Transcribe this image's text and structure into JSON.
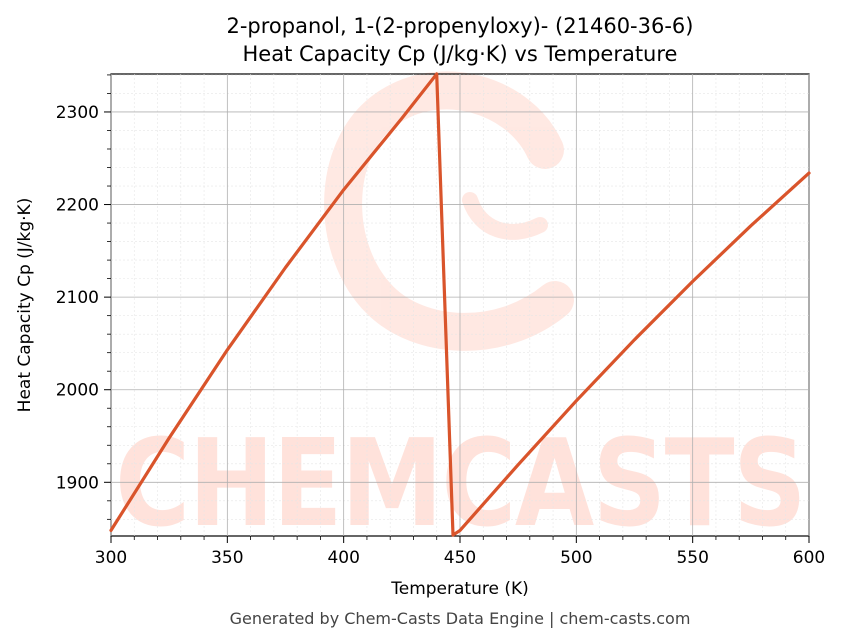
{
  "chart_data": {
    "type": "line",
    "title_line1": "2-propanol, 1-(2-propenyloxy)- (21460-36-6)",
    "title_line2": "Heat Capacity Cp (J/kg·K) vs Temperature",
    "xlabel": "Temperature (K)",
    "ylabel": "Heat Capacity Cp (J/kg·K)",
    "xlim": [
      300,
      600
    ],
    "ylim": [
      1842,
      2341
    ],
    "x_ticks": [
      300,
      350,
      400,
      450,
      500,
      550,
      600
    ],
    "x_tick_labels": [
      "300",
      "350",
      "400",
      "450",
      "500",
      "550",
      "600"
    ],
    "y_ticks": [
      1900,
      2000,
      2100,
      2200,
      2300
    ],
    "y_tick_labels": [
      "1900",
      "2000",
      "2100",
      "2200",
      "2300"
    ],
    "grid": true,
    "line_color": "#d9542b",
    "series": [
      {
        "x": [
          300,
          325,
          350,
          375,
          400,
          425,
          440,
          447,
          450,
          475,
          500,
          525,
          550,
          575,
          600
        ],
        "y": [
          1848,
          1948,
          2043,
          2132,
          2216,
          2293,
          2341,
          1843,
          1848,
          1919,
          1988,
          2054,
          2117,
          2177,
          2234
        ]
      }
    ]
  },
  "watermark": {
    "text": "CHEMCASTS",
    "color": "#ff9a80"
  },
  "footer": "Generated by Chem-Casts Data Engine | chem-casts.com"
}
